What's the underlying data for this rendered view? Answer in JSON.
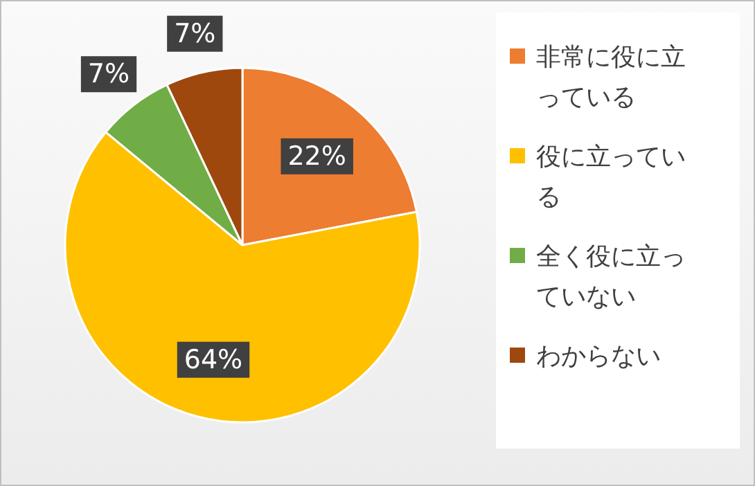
{
  "chart_data": {
    "type": "pie",
    "categories": [
      "非常に役に立っている",
      "役に立っている",
      "全く役に立っていない",
      "わからない"
    ],
    "values": [
      22,
      64,
      7,
      7
    ],
    "colors": [
      "#ed7d31",
      "#ffc000",
      "#70ad47",
      "#9e480e"
    ],
    "value_labels": [
      "22%",
      "64%",
      "7%",
      "7%"
    ],
    "legend": "right"
  }
}
